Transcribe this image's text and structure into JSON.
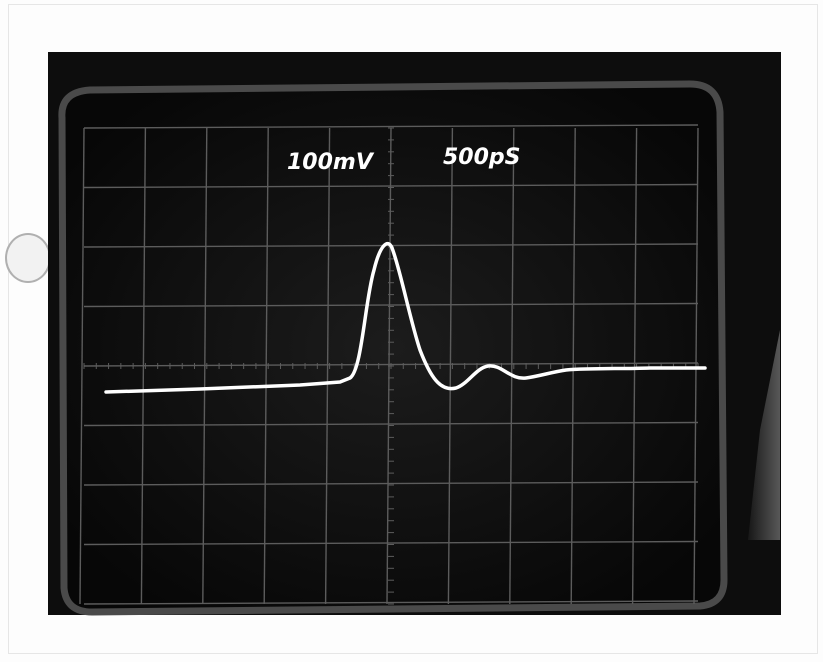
{
  "scope": {
    "volts_per_div_label": "100mV",
    "time_per_div_label": "500pS"
  },
  "colors": {
    "background": "#0d0d0d",
    "bezel": "#4a4a4a",
    "graticule": "#5c5c5c",
    "trace": "#ffffff",
    "paper": "#fdfdfd"
  }
}
